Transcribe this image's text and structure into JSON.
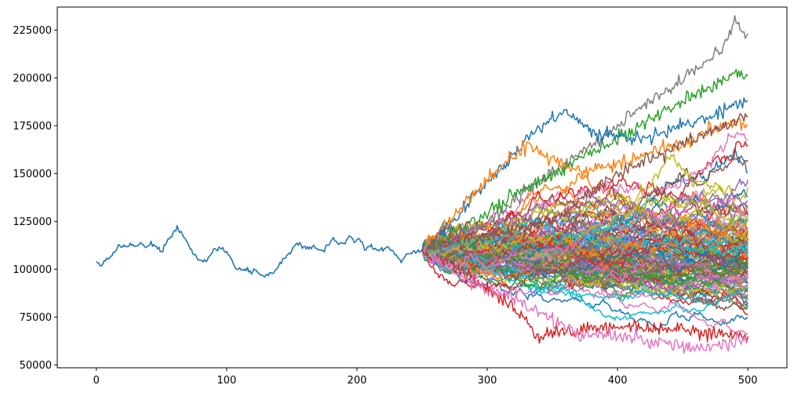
{
  "chart_data": {
    "type": "line",
    "title": "",
    "xlabel": "",
    "ylabel": "",
    "xlim": [
      -30,
      530
    ],
    "ylim": [
      48500,
      237000
    ],
    "x_ticks": [
      0,
      100,
      200,
      300,
      400,
      500
    ],
    "x_tick_labels": [
      "0",
      "100",
      "200",
      "300",
      "400",
      "500"
    ],
    "y_ticks": [
      50000,
      75000,
      100000,
      125000,
      150000,
      175000,
      200000,
      225000
    ],
    "y_tick_labels": [
      "50000",
      "75000",
      "100000",
      "125000",
      "150000",
      "175000",
      "200000",
      "225000"
    ],
    "grid": false,
    "legend": "none",
    "color_cycle": [
      "#1f77b4",
      "#ff7f0e",
      "#2ca02c",
      "#d62728",
      "#9467bd",
      "#8c564b",
      "#e377c2",
      "#7f7f7f",
      "#bcbd22",
      "#17becf"
    ],
    "history": {
      "color": "#1f77b4",
      "x": [
        0,
        3,
        6,
        10,
        14,
        18,
        22,
        26,
        30,
        34,
        38,
        42,
        46,
        50,
        54,
        58,
        62,
        66,
        70,
        74,
        78,
        82,
        86,
        90,
        94,
        98,
        102,
        106,
        110,
        114,
        118,
        122,
        126,
        130,
        134,
        138,
        142,
        146,
        150,
        154,
        158,
        162,
        166,
        170,
        174,
        178,
        182,
        186,
        190,
        194,
        198,
        202,
        206,
        210,
        214,
        218,
        222,
        226,
        230,
        234,
        238,
        242,
        246,
        250
      ],
      "values": [
        104000,
        101500,
        103500,
        106000,
        108500,
        112000,
        111500,
        113000,
        112000,
        114500,
        111000,
        113500,
        112000,
        109000,
        115000,
        118500,
        121000,
        118000,
        114500,
        108000,
        105500,
        103500,
        106000,
        110000,
        111500,
        110500,
        107000,
        102000,
        99500,
        100000,
        98500,
        99500,
        97500,
        96500,
        98000,
        100000,
        104000,
        106500,
        110000,
        113500,
        112000,
        111000,
        112500,
        110000,
        109500,
        113000,
        116000,
        114000,
        113000,
        117000,
        114500,
        116500,
        110000,
        112000,
        110500,
        109500,
        111500,
        110000,
        107500,
        104000,
        107000,
        109000,
        108500,
        110000
      ]
    },
    "fan": {
      "x_start": 250,
      "x_end": 500,
      "start_value": 110000,
      "num_paths": 120,
      "annotated_paths": [
        {
          "color": "#7f7f7f",
          "x": [
            250,
            300,
            350,
            400,
            440,
            460,
            480,
            490,
            495,
            500
          ],
          "values": [
            110000,
            125000,
            150000,
            175000,
            195000,
            205000,
            215000,
            229000,
            225000,
            223000
          ]
        },
        {
          "color": "#2ca02c",
          "x": [
            250,
            300,
            350,
            400,
            440,
            470,
            490,
            500
          ],
          "values": [
            110000,
            130000,
            150000,
            168000,
            185000,
            194000,
            203000,
            201000
          ]
        },
        {
          "color": "#1f77b4",
          "x": [
            250,
            280,
            320,
            340,
            360,
            380,
            420,
            460,
            480,
            500
          ],
          "values": [
            110000,
            130000,
            160000,
            175000,
            183000,
            172000,
            168000,
            178000,
            183000,
            188000
          ]
        },
        {
          "color": "#ff7f0e",
          "x": [
            250,
            290,
            330,
            370,
            410,
            450,
            490,
            500
          ],
          "values": [
            110000,
            140000,
            165000,
            150000,
            158000,
            165000,
            178000,
            175000
          ]
        },
        {
          "color": "#d62728",
          "x": [
            250,
            290,
            320,
            335,
            340,
            360,
            400,
            440,
            480,
            500
          ],
          "values": [
            110000,
            95000,
            80000,
            68000,
            65000,
            68000,
            70000,
            68000,
            66000,
            65000
          ]
        },
        {
          "color": "#e377c2",
          "x": [
            250,
            290,
            330,
            370,
            410,
            450,
            470,
            490,
            500
          ],
          "values": [
            110000,
            92000,
            82000,
            66000,
            64000,
            60000,
            58000,
            62000,
            62000
          ]
        },
        {
          "color": "#8c564b",
          "x": [
            250,
            300,
            350,
            400,
            450,
            500
          ],
          "values": [
            110000,
            118000,
            125000,
            150000,
            165000,
            180000
          ]
        }
      ]
    }
  }
}
